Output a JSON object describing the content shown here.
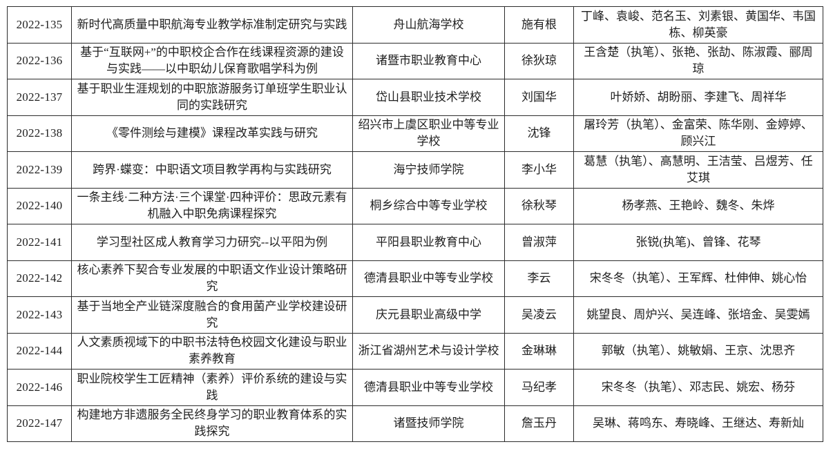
{
  "document": {
    "type": "project-approval-table",
    "colors": {
      "background": "#ffffff",
      "border": "#2b2b2b",
      "text": "#1f1f1f"
    },
    "columns_semantic": [
      "project-id",
      "project-title",
      "host-school",
      "project-leader",
      "team-members"
    ]
  },
  "table": {
    "rows": [
      {
        "id": "2022-135",
        "title": "新时代高质量中职航海专业教学标准制定研究与实践",
        "school": "舟山航海学校",
        "leader": "施有根",
        "members": "丁峰、袁峻、范名玉、刘素银、黄国华、韦国栋、柳英豪"
      },
      {
        "id": "2022-136",
        "title": "基于“互联网+”的中职校企合作在线课程资源的建设与实践——以中职幼儿保育歌唱学科为例",
        "school": "诸暨市职业教育中心",
        "leader": "徐狄琼",
        "members": "王含楚（执笔）、张艳、张劼、陈淑霞、郦周琼"
      },
      {
        "id": "2022-137",
        "title": "基于职业生涯规划的中职旅游服务订单班学生职业认同的实践研究",
        "school": "岱山县职业技术学校",
        "leader": "刘国华",
        "members": "叶娇娇、胡盼丽、李建飞、周祥华"
      },
      {
        "id": "2022-138",
        "title": "《零件测绘与建模》课程改革实践与研究",
        "school": "绍兴市上虞区职业中等专业学校",
        "leader": "沈锋",
        "members": "屠玲芳（执笔）、金富荣、陈华刚、金婷婷、顾兴江"
      },
      {
        "id": "2022-139",
        "title": "跨界·蝶变：中职语文项目教学再构与实践研究",
        "school": "海宁技师学院",
        "leader": "李小华",
        "members": "葛慧（执笔）、高慧明、王洁莹、吕煜芳、任艾琪"
      },
      {
        "id": "2022-140",
        "title": "一条主线·二种方法·三个课堂·四种评价：思政元素有机融入中职免病课程探究",
        "school": "桐乡综合中等专业学校",
        "leader": "徐秋琴",
        "members": "杨孝燕、王艳岭、魏冬、朱烨"
      },
      {
        "id": "2022-141",
        "title": "学习型社区成人教育学习力研究--以平阳为例",
        "school": "平阳县职业教育中心",
        "leader": "曾淑萍",
        "members": "张锐(执笔)、曾锋、花琴"
      },
      {
        "id": "2022-142",
        "title": "核心素养下契合专业发展的中职语文作业设计策略研究",
        "school": "德清县职业中等专业学校",
        "leader": "李云",
        "members": "宋冬冬（执笔）、王军辉、杜伸伸、姚心怡"
      },
      {
        "id": "2022-143",
        "title": "基于当地全产业链深度融合的食用菌产业学校建设研究",
        "school": "庆元县职业高级中学",
        "leader": "吴凌云",
        "members": "姚望良、周炉兴、吴连峰、张培金、吴雯嫣"
      },
      {
        "id": "2022-144",
        "title": "人文素质视域下的中职书法特色校园文化建设与职业素养教育",
        "school": "浙江省湖州艺术与设计学校",
        "leader": "金琳琳",
        "members": "郭敏（执笔）、姚敏娟、王京、沈思齐"
      },
      {
        "id": "2022-146",
        "title": "职业院校学生工匠精神（素养）评价系统的建设与实践",
        "school": "德清县职业中等专业学校",
        "leader": "马纪孝",
        "members": "宋冬冬（执笔）、邓志民、姚宏、杨芬"
      },
      {
        "id": "2022-147",
        "title": "构建地方非遗服务全民终身学习的职业教育体系的实践探究",
        "school": "诸暨技师学院",
        "leader": "詹玉丹",
        "members": "吴琳、蒋鸣东、寿晓峰、王继达、寿新灿"
      }
    ]
  }
}
